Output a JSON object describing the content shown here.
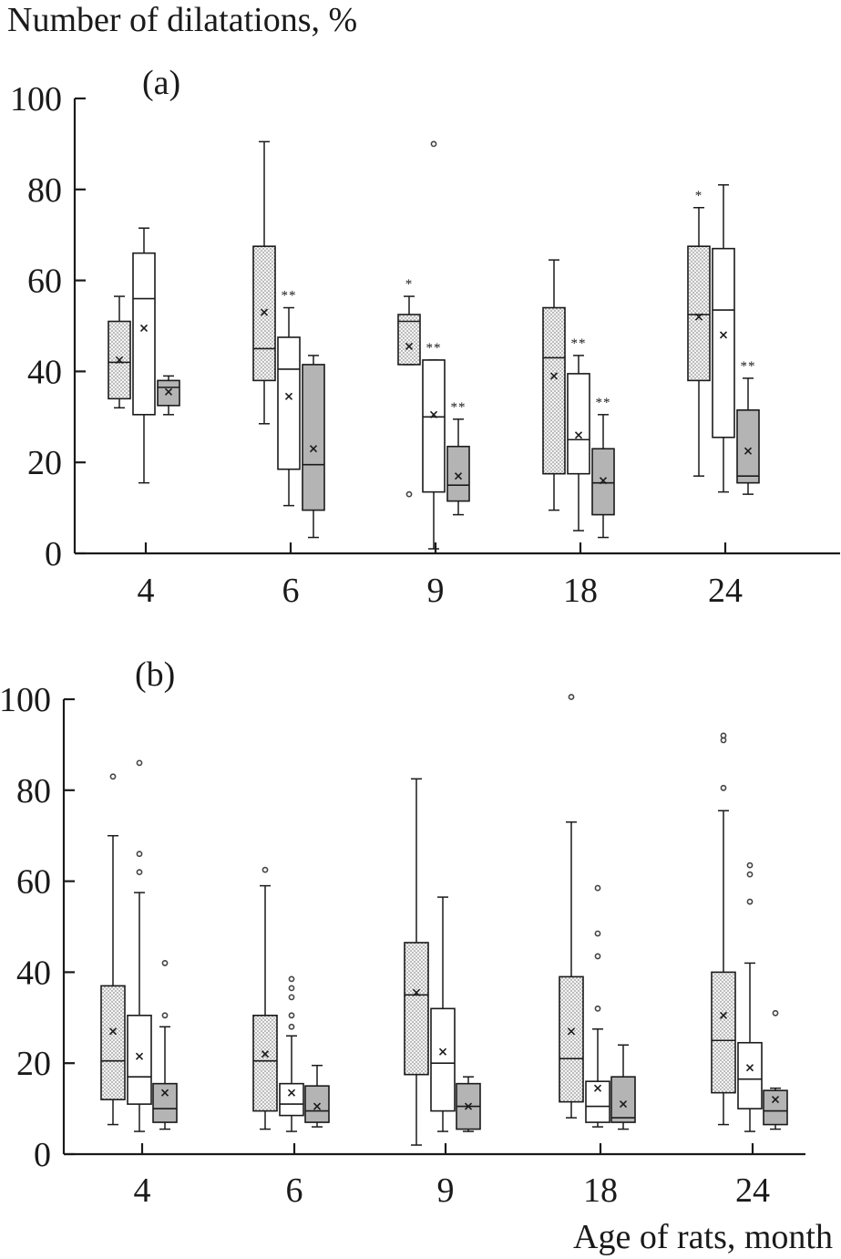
{
  "figure": {
    "ylabel": "Number of dilatations, %",
    "xlabel": "Age of rats, month"
  },
  "styles": {
    "dotted_fill": "#f2f2f2",
    "white_fill": "#ffffff",
    "gray_fill": "#b4b4b4",
    "ink": "#1a1a1a"
  },
  "chart_data": [
    {
      "type": "box",
      "panel_label": "(a)",
      "ylim": [
        0,
        100
      ],
      "yticks": [
        0,
        20,
        40,
        60,
        80,
        100
      ],
      "categories": [
        "4",
        "6",
        "9",
        "18",
        "24"
      ],
      "series_styles": [
        "dotted",
        "white",
        "gray"
      ],
      "groups": [
        {
          "category": "4",
          "boxes": [
            {
              "style": "dotted",
              "min": 32,
              "q1": 34,
              "median": 42,
              "q3": 51,
              "max": 56.5,
              "mean": 42.5,
              "outliers": [],
              "sig": ""
            },
            {
              "style": "white",
              "min": 15.5,
              "q1": 30.5,
              "median": 56,
              "q3": 66,
              "max": 71.5,
              "mean": 49.5,
              "outliers": [],
              "sig": ""
            },
            {
              "style": "gray",
              "min": 30.5,
              "q1": 32.5,
              "median": 36.5,
              "q3": 38,
              "max": 39,
              "mean": 35.5,
              "outliers": [],
              "sig": ""
            }
          ]
        },
        {
          "category": "6",
          "boxes": [
            {
              "style": "dotted",
              "min": 28.5,
              "q1": 38,
              "median": 45,
              "q3": 67.5,
              "max": 90.5,
              "mean": 53,
              "outliers": [],
              "sig": ""
            },
            {
              "style": "white",
              "min": 10.5,
              "q1": 18.5,
              "median": 40.5,
              "q3": 47.5,
              "max": 54,
              "mean": 34.5,
              "outliers": [],
              "sig": "**"
            },
            {
              "style": "gray",
              "min": 3.5,
              "q1": 9.5,
              "median": 19.5,
              "q3": 41.5,
              "max": 43.5,
              "mean": 23,
              "outliers": [],
              "sig": ""
            }
          ]
        },
        {
          "category": "9",
          "boxes": [
            {
              "style": "dotted",
              "min": 41.5,
              "q1": 41.5,
              "median": 51,
              "q3": 52.5,
              "max": 56.5,
              "mean": 45.5,
              "outliers": [
                13
              ],
              "sig": "*"
            },
            {
              "style": "white",
              "min": 1,
              "q1": 13.5,
              "median": 30,
              "q3": 42.5,
              "max": 42.5,
              "mean": 30.5,
              "outliers": [
                90
              ],
              "sig": "**"
            },
            {
              "style": "gray",
              "min": 8.5,
              "q1": 11.5,
              "median": 15,
              "q3": 23.5,
              "max": 29.5,
              "mean": 17,
              "outliers": [],
              "sig": "**"
            }
          ]
        },
        {
          "category": "18",
          "boxes": [
            {
              "style": "dotted",
              "min": 9.5,
              "q1": 17.5,
              "median": 43,
              "q3": 54,
              "max": 64.5,
              "mean": 39,
              "outliers": [],
              "sig": ""
            },
            {
              "style": "white",
              "min": 5,
              "q1": 17.5,
              "median": 25,
              "q3": 39.5,
              "max": 43.5,
              "mean": 26,
              "outliers": [],
              "sig": "**"
            },
            {
              "style": "gray",
              "min": 3.5,
              "q1": 8.5,
              "median": 15.5,
              "q3": 23,
              "max": 30.5,
              "mean": 16,
              "outliers": [],
              "sig": "**"
            }
          ]
        },
        {
          "category": "24",
          "boxes": [
            {
              "style": "dotted",
              "min": 17,
              "q1": 38,
              "median": 52.5,
              "q3": 67.5,
              "max": 76,
              "mean": 52,
              "outliers": [],
              "sig": "*"
            },
            {
              "style": "white",
              "min": 13.5,
              "q1": 25.5,
              "median": 53.5,
              "q3": 67,
              "max": 81,
              "mean": 48,
              "outliers": [],
              "sig": ""
            },
            {
              "style": "gray",
              "min": 13,
              "q1": 15.5,
              "median": 17,
              "q3": 31.5,
              "max": 38.5,
              "mean": 22.5,
              "outliers": [],
              "sig": "**"
            }
          ]
        }
      ]
    },
    {
      "type": "box",
      "panel_label": "(b)",
      "ylim": [
        0,
        100
      ],
      "yticks": [
        0,
        20,
        40,
        60,
        80,
        100
      ],
      "categories": [
        "4",
        "6",
        "9",
        "18",
        "24"
      ],
      "series_styles": [
        "dotted",
        "white",
        "gray"
      ],
      "groups": [
        {
          "category": "4",
          "boxes": [
            {
              "style": "dotted",
              "min": 6.5,
              "q1": 12,
              "median": 20.5,
              "q3": 37,
              "max": 70,
              "mean": 27,
              "outliers": [
                83
              ],
              "sig": ""
            },
            {
              "style": "white",
              "min": 5,
              "q1": 11,
              "median": 17,
              "q3": 30.5,
              "max": 57.5,
              "mean": 21.5,
              "outliers": [
                62,
                66,
                86
              ],
              "sig": ""
            },
            {
              "style": "gray",
              "min": 5.5,
              "q1": 7,
              "median": 10,
              "q3": 15.5,
              "max": 28,
              "mean": 13.5,
              "outliers": [
                30.5,
                42
              ],
              "sig": ""
            }
          ]
        },
        {
          "category": "6",
          "boxes": [
            {
              "style": "dotted",
              "min": 5.5,
              "q1": 9.5,
              "median": 20.5,
              "q3": 30.5,
              "max": 59,
              "mean": 22,
              "outliers": [
                62.5
              ],
              "sig": ""
            },
            {
              "style": "white",
              "min": 5,
              "q1": 8.5,
              "median": 11,
              "q3": 15.5,
              "max": 26,
              "mean": 13.5,
              "outliers": [
                28,
                30.5,
                34.5,
                36.5,
                38.5
              ],
              "sig": ""
            },
            {
              "style": "gray",
              "min": 6,
              "q1": 7,
              "median": 9.5,
              "q3": 15,
              "max": 19.5,
              "mean": 10.5,
              "outliers": [],
              "sig": ""
            }
          ]
        },
        {
          "category": "9",
          "boxes": [
            {
              "style": "dotted",
              "min": 2,
              "q1": 17.5,
              "median": 35,
              "q3": 46.5,
              "max": 82.5,
              "mean": 35.5,
              "outliers": [],
              "sig": ""
            },
            {
              "style": "white",
              "min": 5,
              "q1": 9.5,
              "median": 20,
              "q3": 32,
              "max": 56.5,
              "mean": 22.5,
              "outliers": [],
              "sig": ""
            },
            {
              "style": "gray",
              "min": 5,
              "q1": 5.5,
              "median": 10.5,
              "q3": 15.5,
              "max": 17,
              "mean": 10.5,
              "outliers": [],
              "sig": ""
            }
          ]
        },
        {
          "category": "18",
          "boxes": [
            {
              "style": "dotted",
              "min": 8,
              "q1": 11.5,
              "median": 21,
              "q3": 39,
              "max": 73,
              "mean": 27,
              "outliers": [
                100.5
              ],
              "sig": ""
            },
            {
              "style": "white",
              "min": 6,
              "q1": 7,
              "median": 10.5,
              "q3": 16,
              "max": 27.5,
              "mean": 14.5,
              "outliers": [
                32,
                43.5,
                48.5,
                58.5
              ],
              "sig": ""
            },
            {
              "style": "gray",
              "min": 5.5,
              "q1": 7,
              "median": 8,
              "q3": 17,
              "max": 24,
              "mean": 11,
              "outliers": [],
              "sig": ""
            }
          ]
        },
        {
          "category": "24",
          "boxes": [
            {
              "style": "dotted",
              "min": 6.5,
              "q1": 13.5,
              "median": 25,
              "q3": 40,
              "max": 75.5,
              "mean": 30.5,
              "outliers": [
                80.5,
                91,
                92
              ],
              "sig": ""
            },
            {
              "style": "white",
              "min": 5,
              "q1": 10,
              "median": 16.5,
              "q3": 24.5,
              "max": 42,
              "mean": 19,
              "outliers": [
                55.5,
                61.5,
                63.5
              ],
              "sig": ""
            },
            {
              "style": "gray",
              "min": 5.5,
              "q1": 6.5,
              "median": 9.5,
              "q3": 14,
              "max": 14.5,
              "mean": 12,
              "outliers": [
                31
              ],
              "sig": ""
            }
          ]
        }
      ]
    }
  ]
}
